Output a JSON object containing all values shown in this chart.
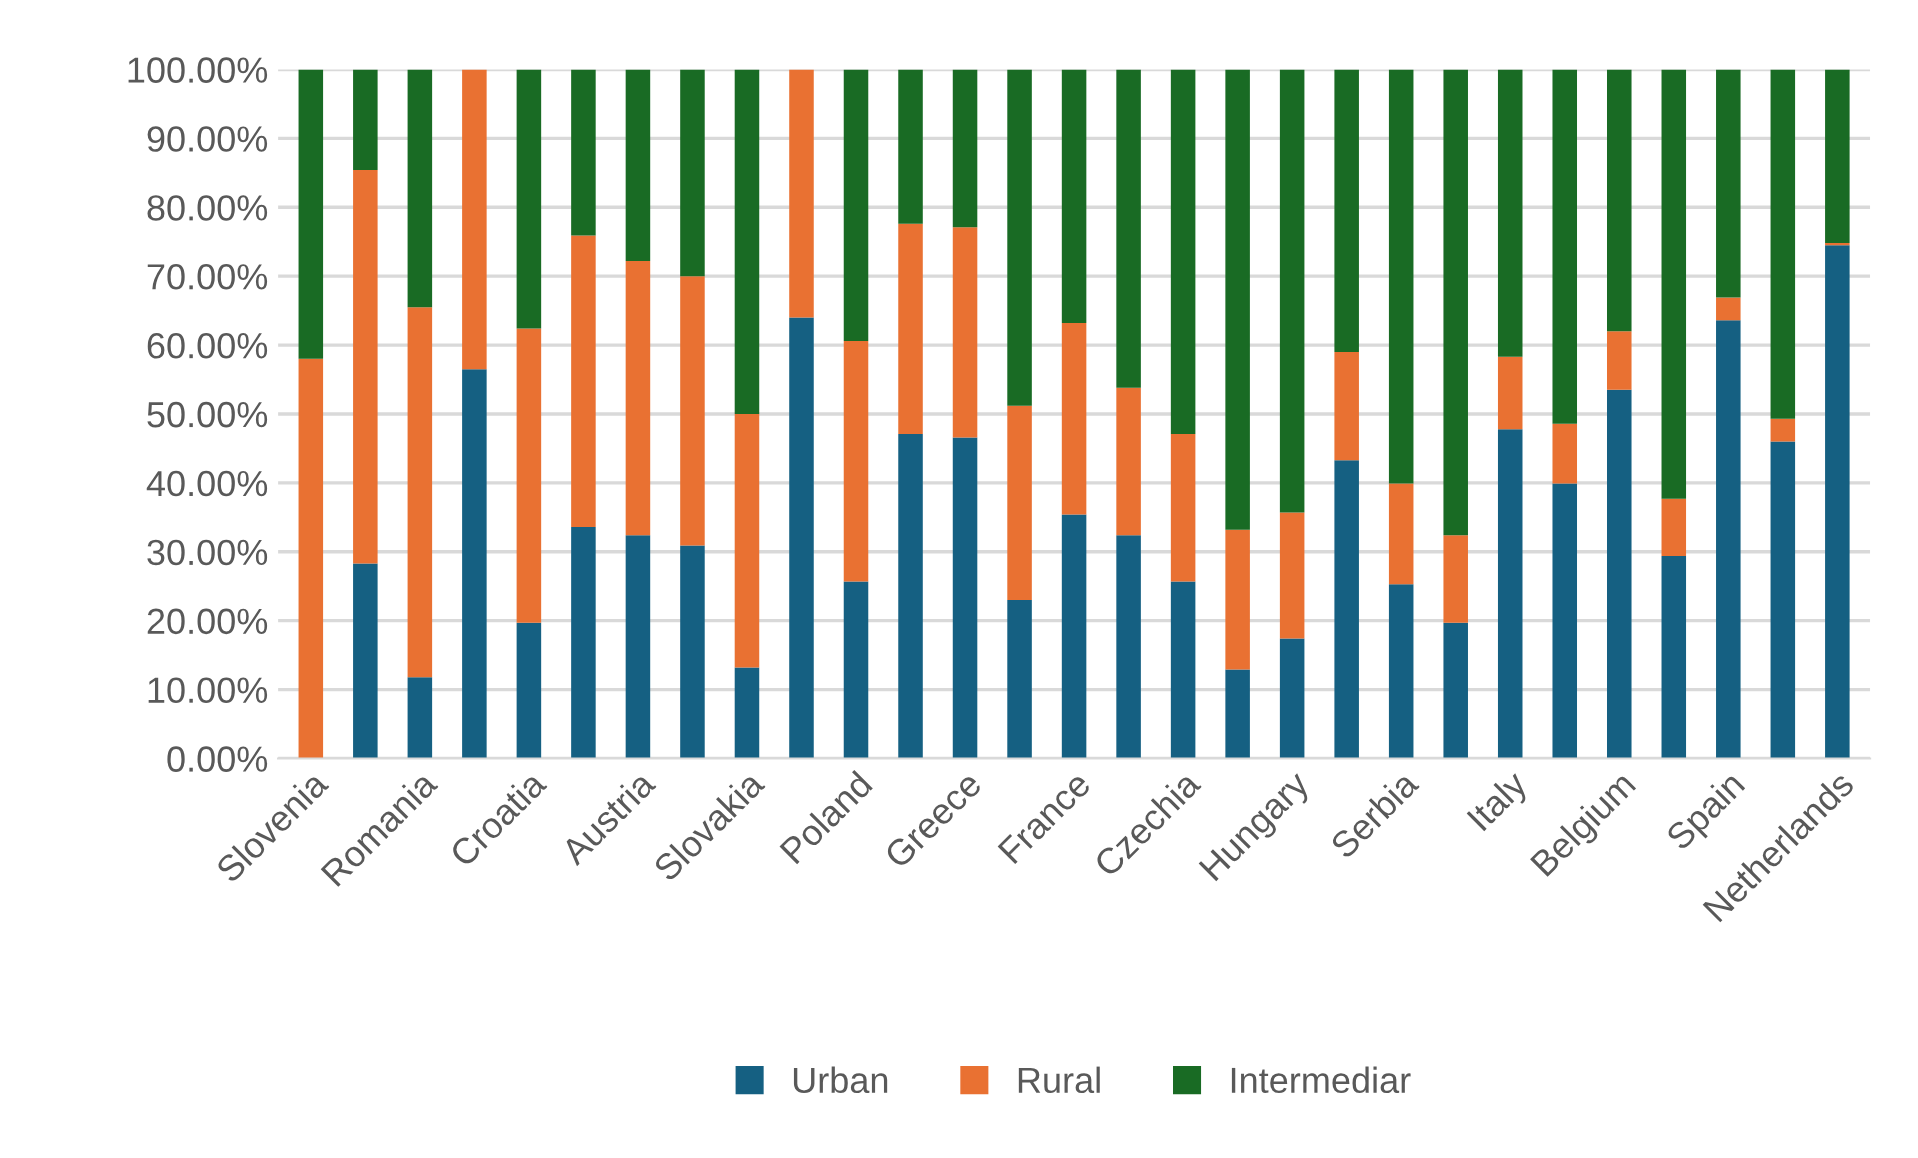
{
  "chart_data": {
    "type": "bar",
    "stacked": true,
    "categories": [
      "Slovenia",
      null,
      "Romania",
      null,
      "Croatia",
      null,
      "Austria",
      null,
      "Slovakia",
      null,
      "Poland",
      null,
      "Greece",
      null,
      "France",
      null,
      "Czechia",
      null,
      "Hungary",
      null,
      "Serbia",
      null,
      "Italy",
      null,
      "Belgium",
      null,
      "Spain",
      null,
      "Netherlands"
    ],
    "series": [
      {
        "name": "Urban",
        "color": "#156082",
        "values": [
          0,
          28.3,
          11.8,
          56.5,
          19.7,
          33.6,
          32.4,
          30.9,
          13.2,
          64.0,
          25.7,
          47.1,
          46.6,
          23.0,
          35.4,
          32.4,
          25.7,
          12.9,
          17.4,
          43.3,
          25.3,
          19.7,
          47.8,
          39.9,
          53.5,
          29.4,
          63.6,
          46.0,
          74.5
        ]
      },
      {
        "name": "Rural",
        "color": "#e97132",
        "values": [
          58.0,
          57.1,
          53.7,
          43.5,
          42.7,
          42.3,
          39.8,
          39.1,
          36.8,
          36.0,
          34.9,
          30.5,
          30.5,
          28.2,
          27.8,
          21.4,
          21.4,
          20.3,
          18.3,
          15.7,
          14.6,
          12.7,
          10.5,
          8.7,
          8.5,
          8.3,
          3.3,
          3.3,
          0.3
        ]
      },
      {
        "name": "Intermediar",
        "color": "#196b24",
        "values": [
          42.0,
          14.6,
          34.5,
          0,
          37.6,
          24.1,
          27.8,
          30.0,
          50.0,
          0,
          39.4,
          22.4,
          22.9,
          48.8,
          36.8,
          46.2,
          52.9,
          66.8,
          64.3,
          41.0,
          60.1,
          67.6,
          41.7,
          51.4,
          38.0,
          62.3,
          33.1,
          50.7,
          25.2
        ]
      }
    ],
    "ylim": [
      0,
      100
    ],
    "yticks": [
      {
        "value": 0,
        "label": "0.00%"
      },
      {
        "value": 10,
        "label": "10.00%"
      },
      {
        "value": 20,
        "label": "20.00%"
      },
      {
        "value": 30,
        "label": "30.00%"
      },
      {
        "value": 40,
        "label": "40.00%"
      },
      {
        "value": 50,
        "label": "50.00%"
      },
      {
        "value": 60,
        "label": "60.00%"
      },
      {
        "value": 70,
        "label": "70.00%"
      },
      {
        "value": 80,
        "label": "80.00%"
      },
      {
        "value": 90,
        "label": "90.00%"
      },
      {
        "value": 100,
        "label": "100.00%"
      }
    ],
    "grid": "y",
    "legend": "bottom"
  }
}
